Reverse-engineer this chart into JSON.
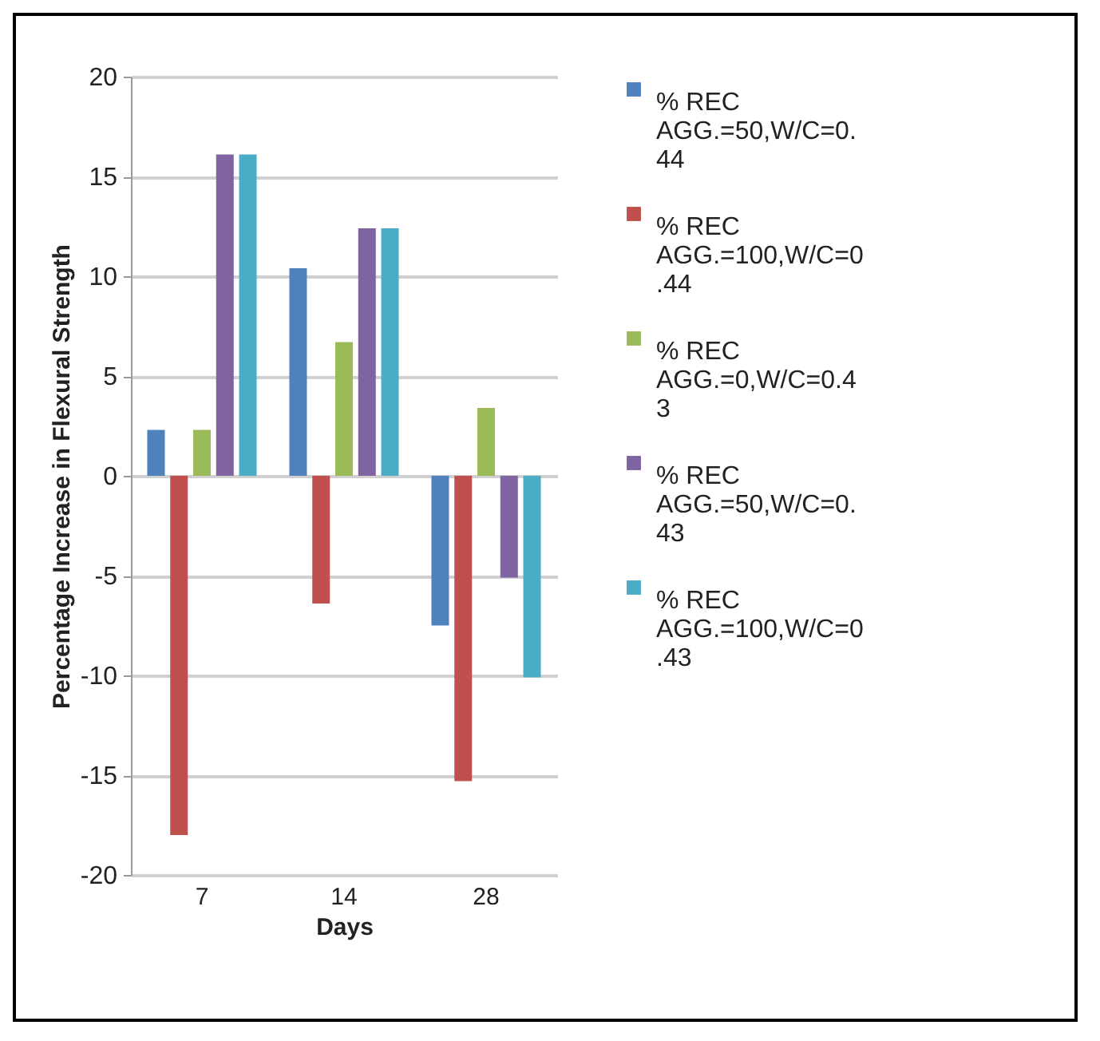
{
  "chart_data": {
    "type": "bar",
    "xlabel": "Days",
    "ylabel": "Percentage Increase in Flexural  Strength",
    "categories": [
      "7",
      "14",
      "28"
    ],
    "series": [
      {
        "name": "% REC AGG.=50,W/C=0.44",
        "color": "#4f81bd",
        "values": [
          2.3,
          10.4,
          -7.5
        ]
      },
      {
        "name": "% REC AGG.=100,W/C=0.44",
        "color": "#c0504d",
        "values": [
          -18.0,
          -6.4,
          -15.3
        ]
      },
      {
        "name": "% REC AGG.=0,W/C=0.43",
        "color": "#9bbb59",
        "values": [
          2.3,
          6.7,
          3.4
        ]
      },
      {
        "name": "% REC AGG.=50,W/C=0.43",
        "color": "#8064a2",
        "values": [
          16.1,
          12.4,
          -5.1
        ]
      },
      {
        "name": "% REC AGG.=100,W/C=0.43",
        "color": "#4bacc6",
        "values": [
          16.1,
          12.4,
          -10.1
        ]
      }
    ],
    "ylim": [
      -20,
      20
    ],
    "yticks": [
      -20,
      -15,
      -10,
      -5,
      0,
      5,
      10,
      15,
      20
    ],
    "grid": "y",
    "legend": "right"
  }
}
